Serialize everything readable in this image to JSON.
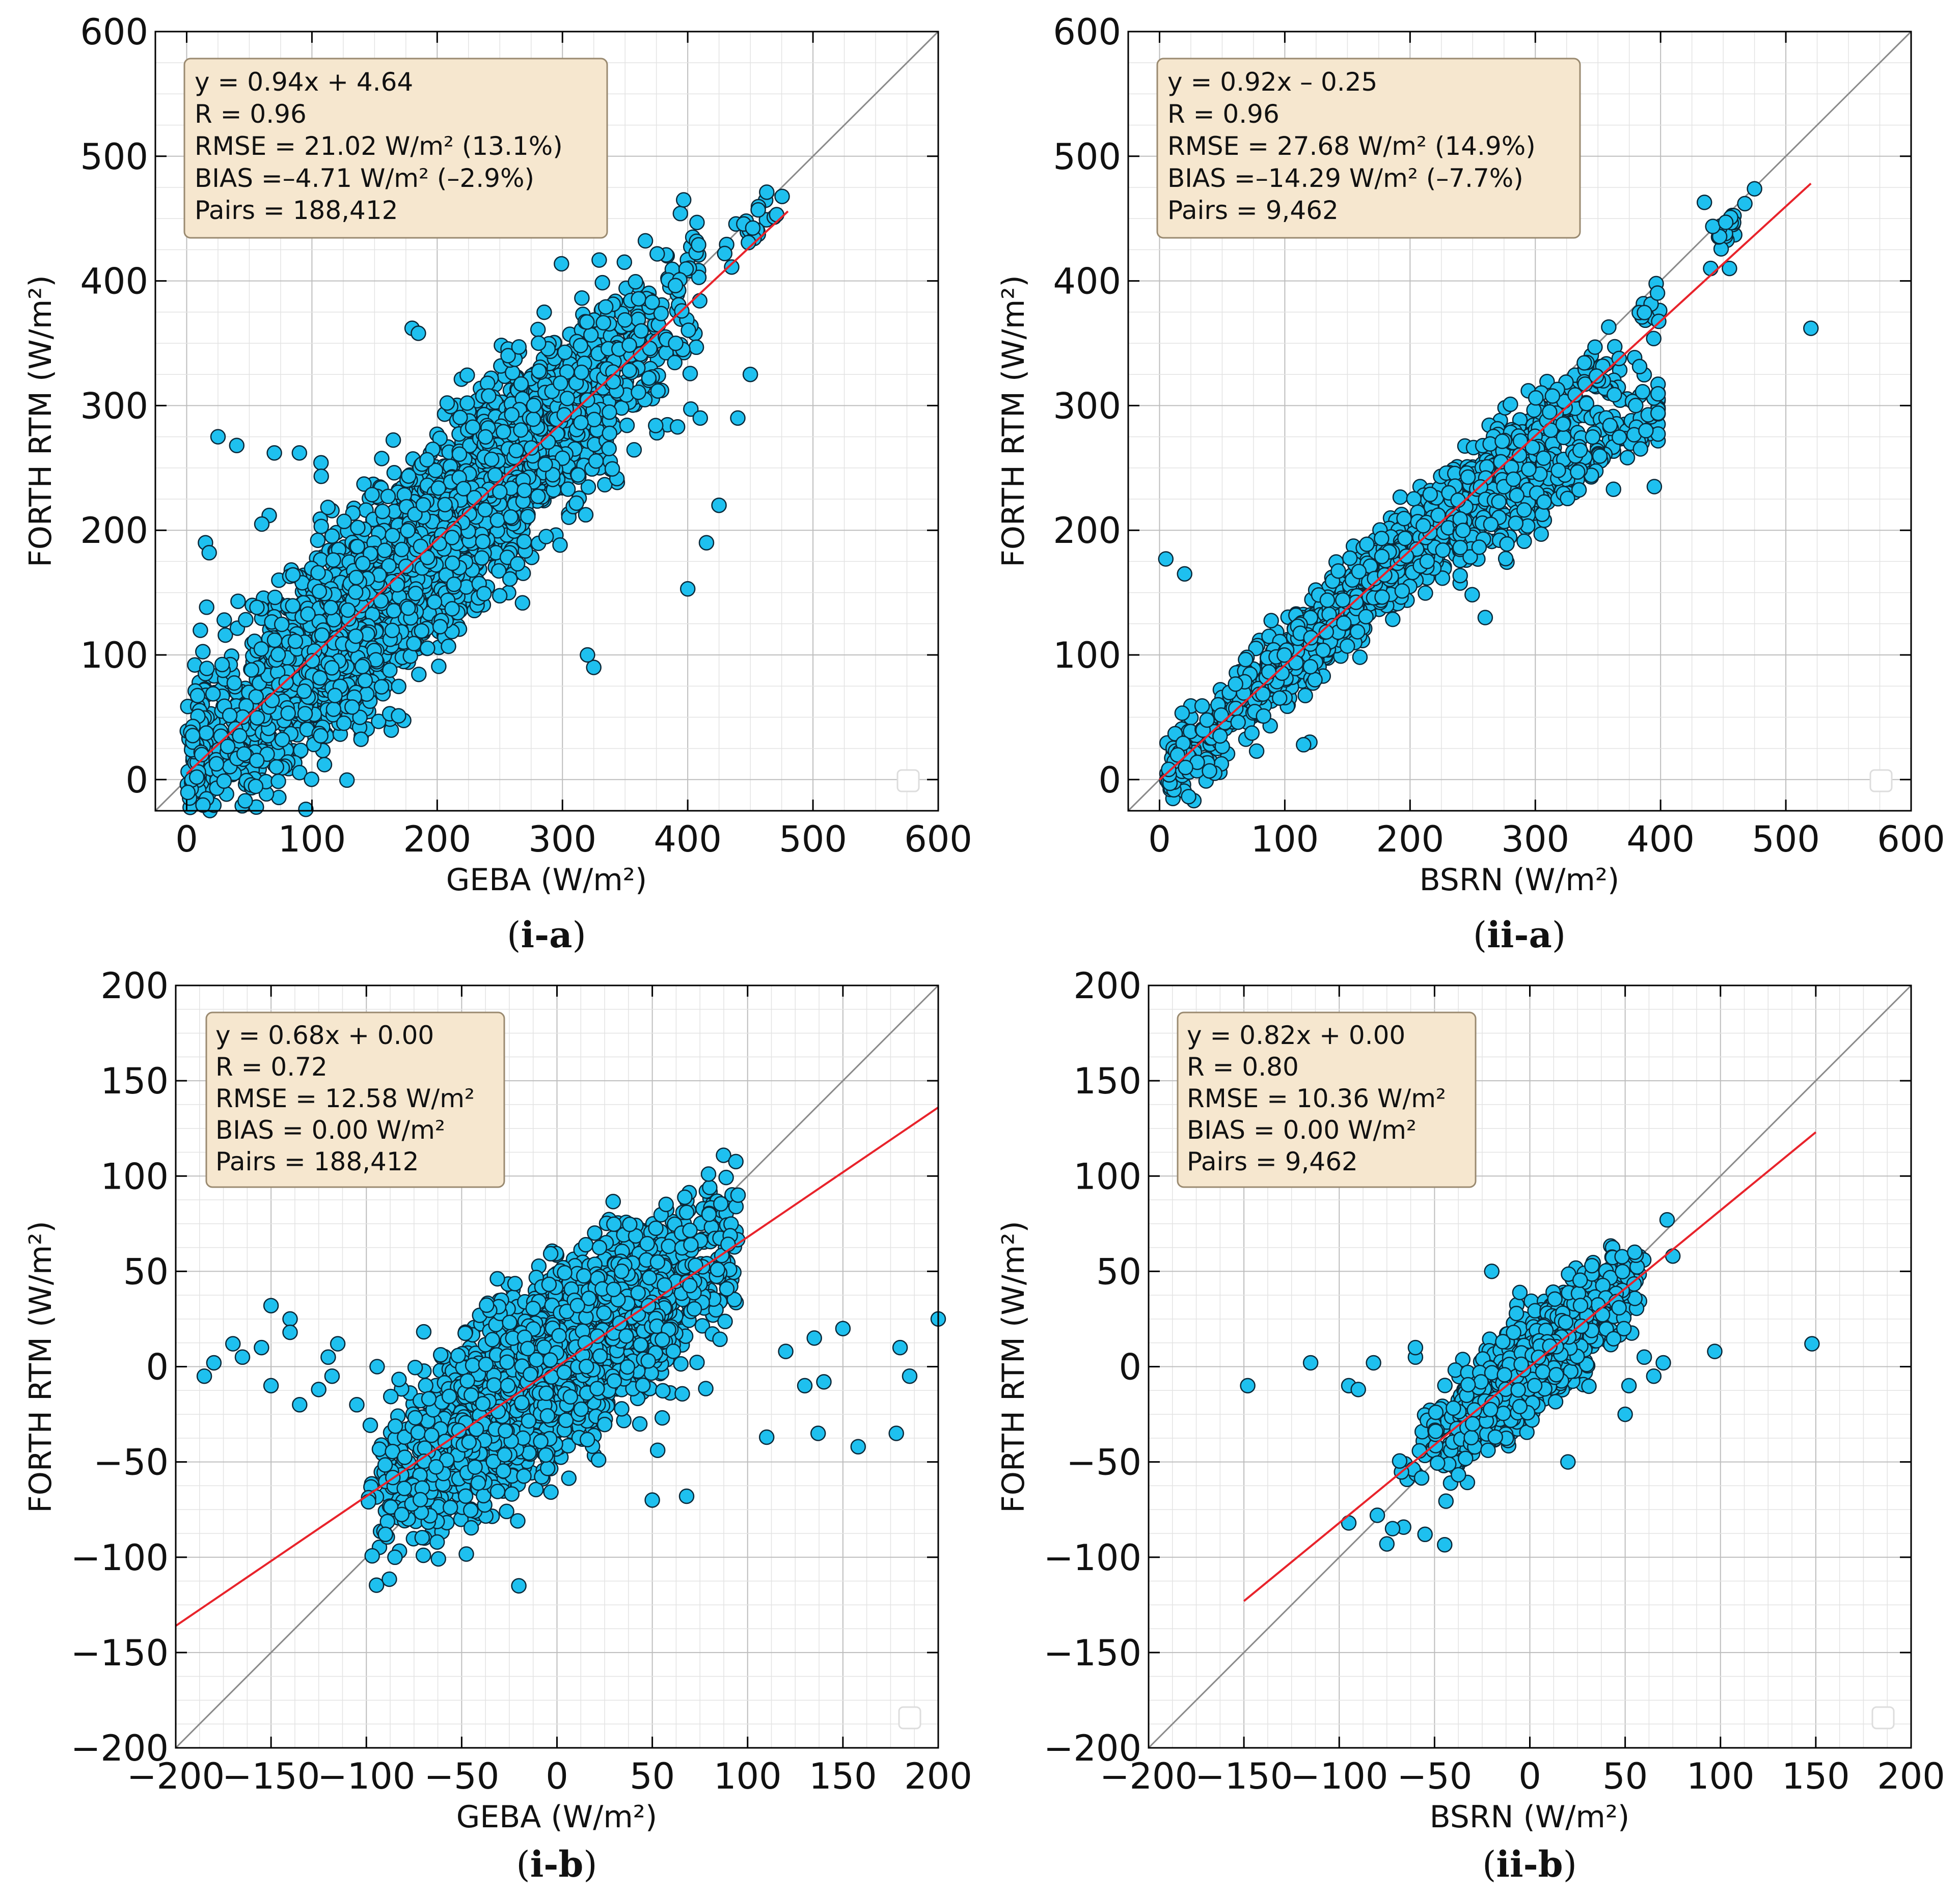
{
  "colors": {
    "point_fill": "#1ec0ef",
    "point_stroke": "#0b2838",
    "fit_line": "#e8232b",
    "identity_line": "#8a8a8a",
    "stats_box_fill": "#f6e7cf",
    "stats_box_stroke": "#9a8a70",
    "grid_major": "#bdbdbd",
    "grid_minor": "#e3e3e3"
  },
  "chart_data": [
    {
      "id": "i-a",
      "type": "scatter",
      "caption_paren_left": "(",
      "caption": "i-a",
      "caption_paren_right": ")",
      "xlabel": "GEBA (W/m²)",
      "ylabel": "FORTH RTM (W/m²)",
      "xlim": [
        -25,
        600
      ],
      "ylim": [
        -25,
        600
      ],
      "xticks": [
        0,
        100,
        200,
        300,
        400,
        500,
        600
      ],
      "yticks": [
        0,
        100,
        200,
        300,
        400,
        500,
        600
      ],
      "xtick_labels": [
        "0",
        "100",
        "200",
        "300",
        "400",
        "500",
        "600"
      ],
      "ytick_labels": [
        "0",
        "100",
        "200",
        "300",
        "400",
        "500",
        "600"
      ],
      "minor_step": 25,
      "fit": {
        "slope": 0.94,
        "intercept": 4.64,
        "x_range": [
          0,
          480
        ]
      },
      "identity_line": true,
      "stats": [
        "y = 0.94x + 4.64",
        "R = 0.96",
        "RMSE = 21.02 W/m² (13.1%)",
        "BIAS =–4.71 W/m² (–2.9%)",
        "Pairs = 188,412"
      ],
      "cloud": {
        "count": 3500,
        "x_mean": 190,
        "x_sd": 90,
        "x_min": 0,
        "x_max": 410,
        "noise_sd": 38,
        "seed": 11
      },
      "clusters": [
        {
          "x_mean": 450,
          "x_sd": 12,
          "y_slope": 0.98,
          "y_intercept": 5,
          "noise_sd": 10,
          "count": 22,
          "x_min": 410,
          "x_max": 480
        }
      ],
      "outliers": [
        [
          25,
          275
        ],
        [
          40,
          268
        ],
        [
          70,
          262
        ],
        [
          15,
          190
        ],
        [
          18,
          182
        ],
        [
          30,
          128
        ],
        [
          60,
          205
        ],
        [
          325,
          90
        ],
        [
          320,
          100
        ],
        [
          400,
          153
        ],
        [
          415,
          190
        ],
        [
          425,
          220
        ],
        [
          450,
          325
        ],
        [
          110,
          12
        ],
        [
          12,
          20
        ],
        [
          8,
          2
        ],
        [
          410,
          290
        ],
        [
          440,
          290
        ],
        [
          180,
          362
        ],
        [
          185,
          358
        ],
        [
          90,
          262
        ]
      ]
    },
    {
      "id": "ii-a",
      "type": "scatter",
      "caption_paren_left": "(",
      "caption": "ii-a",
      "caption_paren_right": ")",
      "xlabel": "BSRN (W/m²)",
      "ylabel": "FORTH RTM (W/m²)",
      "xlim": [
        -25,
        600
      ],
      "ylim": [
        -25,
        600
      ],
      "xticks": [
        0,
        100,
        200,
        300,
        400,
        500,
        600
      ],
      "yticks": [
        0,
        100,
        200,
        300,
        400,
        500,
        600
      ],
      "xtick_labels": [
        "0",
        "100",
        "200",
        "300",
        "400",
        "500",
        "600"
      ],
      "ytick_labels": [
        "0",
        "100",
        "200",
        "300",
        "400",
        "500",
        "600"
      ],
      "minor_step": 25,
      "fit": {
        "slope": 0.92,
        "intercept": -0.25,
        "x_range": [
          0,
          520
        ]
      },
      "identity_line": true,
      "stats": [
        "y = 0.92x  –  0.25",
        "R = 0.96",
        "RMSE = 27.68 W/m² (14.9%)",
        "BIAS =–14.29 W/m² (–7.7%)",
        "Pairs = 9,462"
      ],
      "cloud": {
        "count": 1600,
        "x_mean": 180,
        "x_sd": 85,
        "x_min": 5,
        "x_max": 400,
        "noise_sd": 16,
        "seed": 23
      },
      "clusters": [
        {
          "x_mean": 320,
          "x_sd": 45,
          "y_slope": 0.72,
          "y_intercept": 10,
          "noise_sd": 14,
          "count": 230,
          "x_min": 240,
          "x_max": 398
        },
        {
          "x_mean": 455,
          "x_sd": 10,
          "y_slope": 0.98,
          "y_intercept": 0,
          "noise_sd": 6,
          "count": 20,
          "x_min": 432,
          "x_max": 475
        }
      ],
      "outliers": [
        [
          5,
          177
        ],
        [
          20,
          165
        ],
        [
          520,
          362
        ],
        [
          435,
          463
        ],
        [
          440,
          410
        ],
        [
          455,
          410
        ],
        [
          120,
          30
        ],
        [
          115,
          28
        ],
        [
          260,
          130
        ],
        [
          395,
          235
        ]
      ]
    },
    {
      "id": "i-b",
      "type": "scatter",
      "caption_paren_left": "(",
      "caption": "i-b",
      "caption_paren_right": ")",
      "xlabel": "GEBA (W/m²)",
      "ylabel": "FORTH RTM (W/m²)",
      "xlim": [
        -200,
        200
      ],
      "ylim": [
        -200,
        200
      ],
      "xticks": [
        -200,
        -150,
        -100,
        -50,
        0,
        50,
        100,
        150,
        200
      ],
      "yticks": [
        -200,
        -150,
        -100,
        -50,
        0,
        50,
        100,
        150,
        200
      ],
      "xtick_labels": [
        "−200",
        "−150",
        "−100",
        "−50",
        "0",
        "50",
        "100",
        "150",
        "200"
      ],
      "ytick_labels": [
        "−200",
        "−150",
        "−100",
        "−50",
        "0",
        "50",
        "100",
        "150",
        "200"
      ],
      "minor_step": 12.5,
      "fit": {
        "slope": 0.68,
        "intercept": 0.0,
        "x_range": [
          -200,
          200
        ]
      },
      "identity_line": true,
      "stats": [
        "y = 0.68x + 0.00",
        "R = 0.72",
        "RMSE = 12.58 W/m²",
        "BIAS = 0.00 W/m²",
        "Pairs = 188,412"
      ],
      "cloud": {
        "count": 3200,
        "x_mean": 0,
        "x_sd": 40,
        "x_min": -100,
        "x_max": 95,
        "noise_sd": 22,
        "seed": 37
      },
      "clusters": [],
      "outliers": [
        [
          -185,
          -5
        ],
        [
          -180,
          2
        ],
        [
          -170,
          12
        ],
        [
          -165,
          5
        ],
        [
          -155,
          10
        ],
        [
          -150,
          32
        ],
        [
          -150,
          -10
        ],
        [
          -140,
          25
        ],
        [
          -140,
          18
        ],
        [
          -135,
          -20
        ],
        [
          -125,
          -12
        ],
        [
          -120,
          5
        ],
        [
          -118,
          -5
        ],
        [
          -115,
          12
        ],
        [
          -105,
          -20
        ],
        [
          110,
          -37
        ],
        [
          120,
          8
        ],
        [
          130,
          -10
        ],
        [
          135,
          15
        ],
        [
          137,
          -35
        ],
        [
          140,
          -8
        ],
        [
          150,
          20
        ],
        [
          158,
          -42
        ],
        [
          178,
          -35
        ],
        [
          180,
          10
        ],
        [
          185,
          -5
        ],
        [
          200,
          25
        ],
        [
          -20,
          -115
        ],
        [
          -85,
          -100
        ],
        [
          50,
          -70
        ],
        [
          68,
          -68
        ],
        [
          95,
          90
        ],
        [
          -90,
          -88
        ]
      ]
    },
    {
      "id": "ii-b",
      "type": "scatter",
      "caption_paren_left": "(",
      "caption": "ii-b",
      "caption_paren_right": ")",
      "xlabel": "BSRN (W/m²)",
      "ylabel": "FORTH RTM (W/m²)",
      "xlim": [
        -200,
        200
      ],
      "ylim": [
        -200,
        200
      ],
      "xticks": [
        -200,
        -150,
        -100,
        -50,
        0,
        50,
        100,
        150,
        200
      ],
      "yticks": [
        -200,
        -150,
        -100,
        -50,
        0,
        50,
        100,
        150,
        200
      ],
      "xtick_labels": [
        "−200",
        "−150",
        "−100",
        "−50",
        "0",
        "50",
        "100",
        "150",
        "200"
      ],
      "ytick_labels": [
        "−200",
        "−150",
        "−100",
        "−50",
        "0",
        "50",
        "100",
        "150",
        "200"
      ],
      "minor_step": 12.5,
      "fit": {
        "slope": 0.82,
        "intercept": 0.0,
        "x_range": [
          -150,
          150
        ]
      },
      "identity_line": true,
      "stats": [
        "y = 0.82x + 0.00",
        "R = 0.80",
        "RMSE = 10.36 W/m²",
        "BIAS = 0.00 W/m²",
        "Pairs = 9,462"
      ],
      "cloud": {
        "count": 1100,
        "x_mean": 0,
        "x_sd": 25,
        "x_min": -70,
        "x_max": 60,
        "noise_sd": 13,
        "seed": 51
      },
      "clusters": [],
      "outliers": [
        [
          -148,
          -10
        ],
        [
          -115,
          2
        ],
        [
          -95,
          -10
        ],
        [
          -90,
          -12
        ],
        [
          -82,
          2
        ],
        [
          -80,
          -78
        ],
        [
          -75,
          -93
        ],
        [
          -72,
          -85
        ],
        [
          -60,
          5
        ],
        [
          -60,
          10
        ],
        [
          -55,
          -88
        ],
        [
          -30,
          -30
        ],
        [
          -20,
          50
        ],
        [
          20,
          -50
        ],
        [
          50,
          -25
        ],
        [
          52,
          -10
        ],
        [
          55,
          60
        ],
        [
          60,
          5
        ],
        [
          65,
          -5
        ],
        [
          70,
          2
        ],
        [
          72,
          77
        ],
        [
          75,
          58
        ],
        [
          97,
          8
        ],
        [
          148,
          12
        ],
        [
          -95,
          -82
        ]
      ]
    }
  ]
}
